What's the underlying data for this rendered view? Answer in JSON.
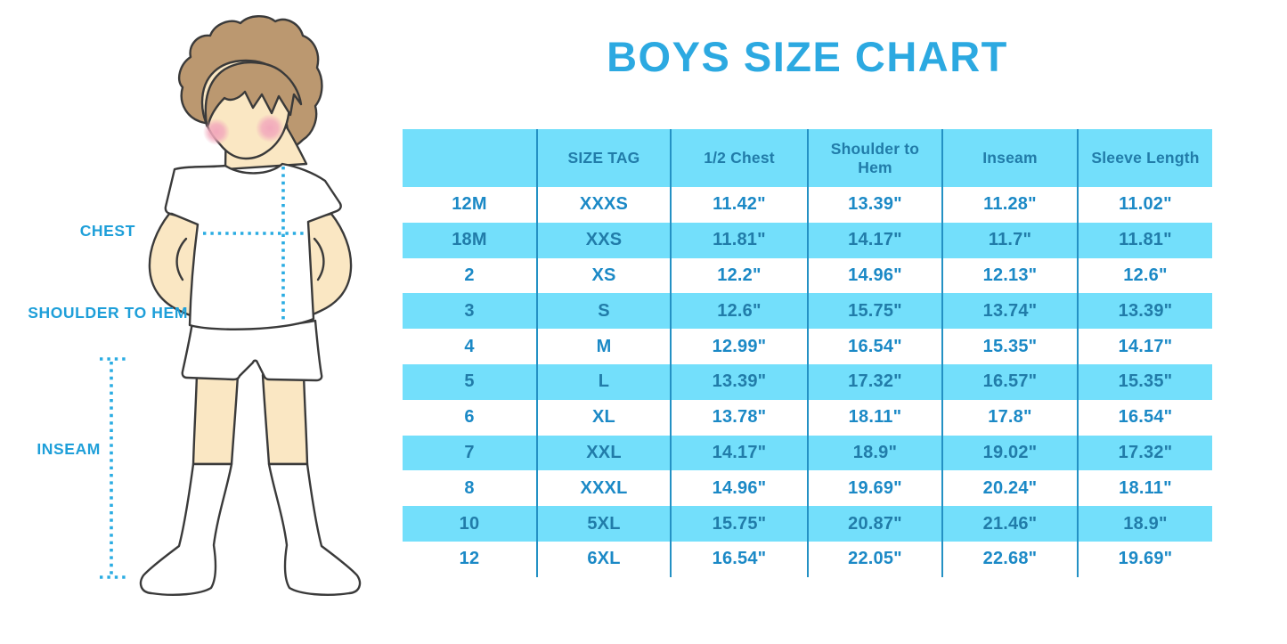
{
  "title": "BOYS SIZE CHART",
  "colors": {
    "accent_blue": "#29ABE2",
    "table_fill_cyan": "#73DFFB",
    "table_grid_line": "#2491C4",
    "table_text_on_white": "#1B89C6",
    "table_text_on_cyan": "#217CA9",
    "skin": "#FAE7C3",
    "hair": "#BB9870",
    "blush": "#F2A8BC"
  },
  "figure": {
    "labels": {
      "chest": "CHEST",
      "shoulder_to_hem": "SHOULDER TO HEM",
      "inseam": "INSEAM"
    }
  },
  "chart_data": {
    "type": "table",
    "title": "BOYS SIZE CHART",
    "columns": [
      "",
      "SIZE TAG",
      "1/2 Chest",
      "Shoulder to Hem",
      "Inseam",
      "Sleeve Length"
    ],
    "rows": [
      [
        "12M",
        "XXXS",
        "11.42\"",
        "13.39\"",
        "11.28\"",
        "11.02\""
      ],
      [
        "18M",
        "XXS",
        "11.81\"",
        "14.17\"",
        "11.7\"",
        "11.81\""
      ],
      [
        "2",
        "XS",
        "12.2\"",
        "14.96\"",
        "12.13\"",
        "12.6\""
      ],
      [
        "3",
        "S",
        "12.6\"",
        "15.75\"",
        "13.74\"",
        "13.39\""
      ],
      [
        "4",
        "M",
        "12.99\"",
        "16.54\"",
        "15.35\"",
        "14.17\""
      ],
      [
        "5",
        "L",
        "13.39\"",
        "17.32\"",
        "16.57\"",
        "15.35\""
      ],
      [
        "6",
        "XL",
        "13.78\"",
        "18.11\"",
        "17.8\"",
        "16.54\""
      ],
      [
        "7",
        "XXL",
        "14.17\"",
        "18.9\"",
        "19.02\"",
        "17.32\""
      ],
      [
        "8",
        "XXXL",
        "14.96\"",
        "19.69\"",
        "20.24\"",
        "18.11\""
      ],
      [
        "10",
        "5XL",
        "15.75\"",
        "20.87\"",
        "21.46\"",
        "18.9\""
      ],
      [
        "12",
        "6XL",
        "16.54\"",
        "22.05\"",
        "22.68\"",
        "19.69\""
      ]
    ]
  }
}
